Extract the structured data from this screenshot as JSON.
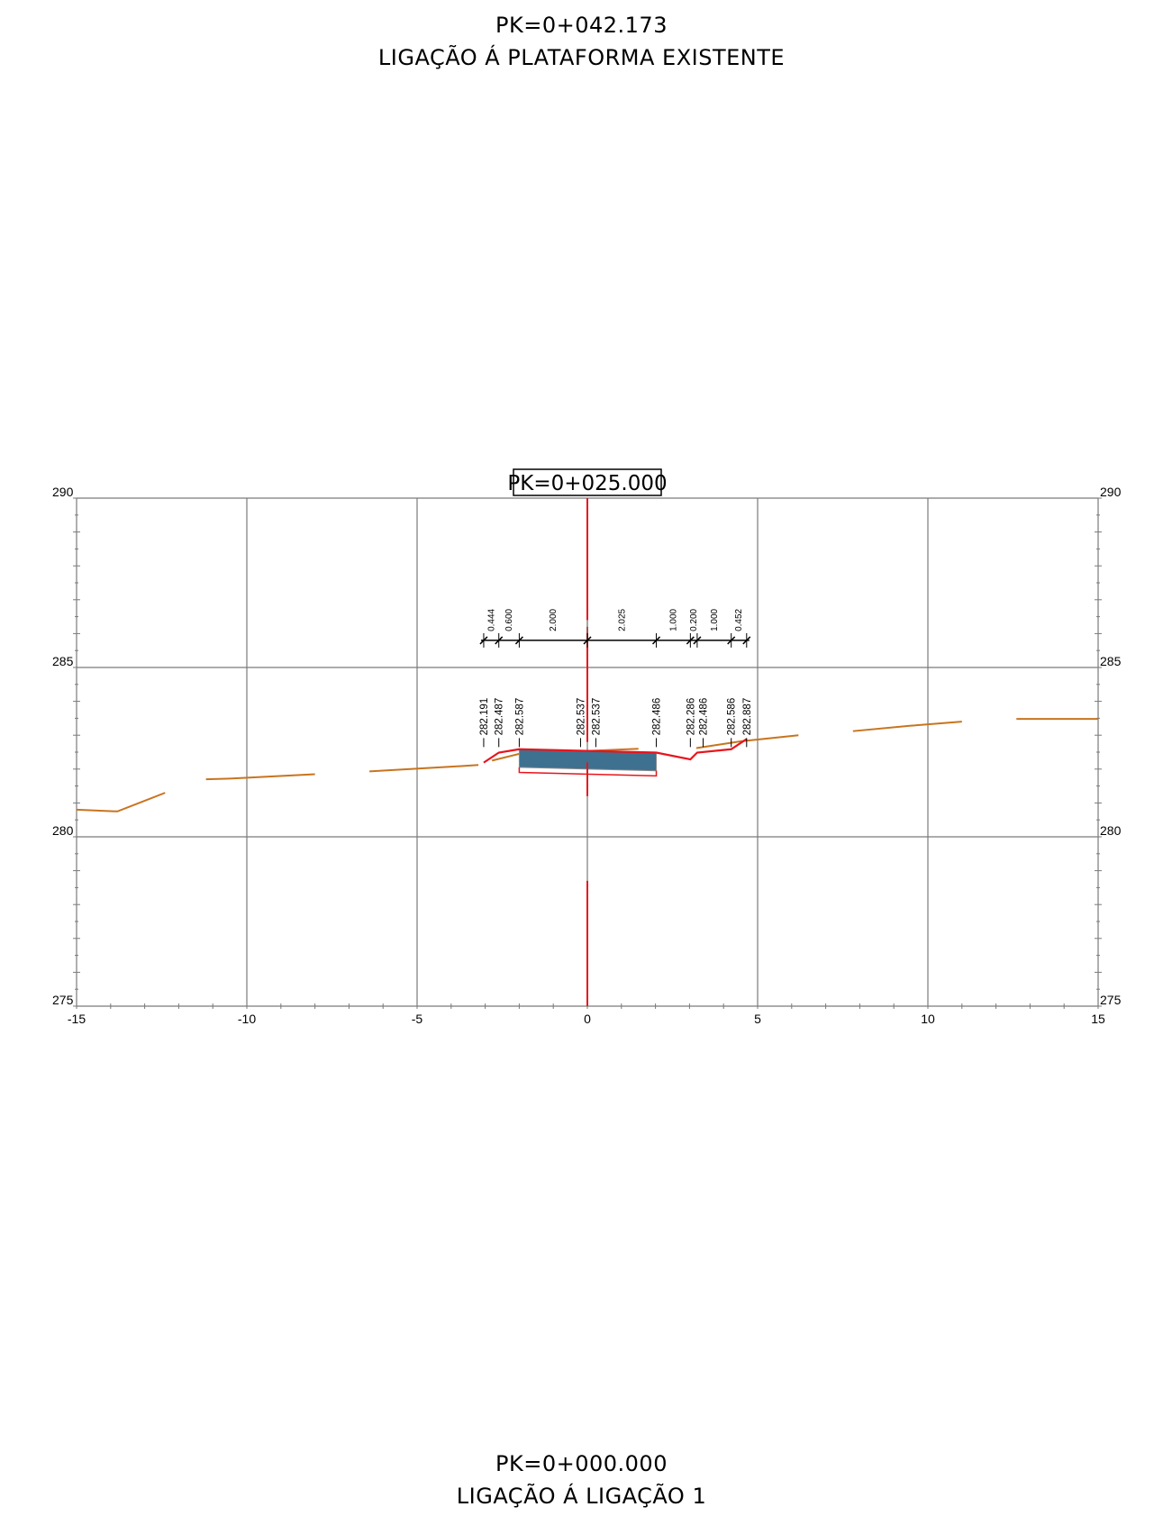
{
  "header": {
    "pk": "PK=0+042.173",
    "connection": "LIGAÇÃO Á PLATAFORMA EXISTENTE"
  },
  "footer": {
    "pk": "PK=0+000.000",
    "connection": "LIGAÇÃO Á LIGAÇÃO 1"
  },
  "section": {
    "pk_label": "PK=0+025.000",
    "x_axis": {
      "range": [
        -15,
        15
      ],
      "ticks": [
        "-15",
        "-10",
        "-5",
        "0",
        "5",
        "10",
        "15"
      ]
    },
    "y_axis": {
      "range": [
        275,
        290
      ],
      "ticks": [
        "275",
        "280",
        "285",
        "290"
      ]
    },
    "colors": {
      "grid": "#7a7a7a",
      "terrain": "#c8741f",
      "design_line": "#e8141c",
      "pavement_fill": "#3e7090",
      "axis_line": "#e8141c"
    },
    "terrain_segments": [
      [
        [
          -15,
          280.8
        ],
        [
          -13.8,
          280.75
        ],
        [
          -12.4,
          281.3
        ]
      ],
      [
        [
          -11.2,
          281.7
        ],
        [
          -10.5,
          281.72
        ],
        [
          -8.0,
          281.85
        ]
      ],
      [
        [
          -6.4,
          281.93
        ],
        [
          -4.0,
          282.07
        ],
        [
          -3.2,
          282.12
        ]
      ],
      [
        [
          -2.8,
          282.25
        ],
        [
          -2.0,
          282.45
        ],
        [
          1.5,
          282.6
        ]
      ],
      [
        [
          3.2,
          282.62
        ],
        [
          4.5,
          282.82
        ],
        [
          6.2,
          283.0
        ]
      ],
      [
        [
          7.8,
          283.12
        ],
        [
          9.5,
          283.28
        ],
        [
          11.0,
          283.4
        ]
      ],
      [
        [
          12.6,
          283.48
        ],
        [
          15.0,
          283.48
        ]
      ]
    ],
    "design_profile": [
      [
        -3.044,
        282.191
      ],
      [
        -2.6,
        282.487
      ],
      [
        -2.0,
        282.587
      ],
      [
        0,
        282.537
      ],
      [
        2.025,
        282.486
      ],
      [
        3.025,
        282.286
      ],
      [
        3.225,
        282.486
      ],
      [
        4.225,
        282.586
      ],
      [
        4.677,
        282.887
      ]
    ],
    "pavement": {
      "fill_top": [
        [
          -2.0,
          282.587
        ],
        [
          0,
          282.537
        ],
        [
          2.025,
          282.486
        ]
      ],
      "fill_bottom_y": 282.0,
      "subbase_bottom_y": 281.85
    },
    "elevation_labels": [
      {
        "x": -3.044,
        "text": "282.191"
      },
      {
        "x": -2.6,
        "text": "282.487"
      },
      {
        "x": -2.0,
        "text": "282.587"
      },
      {
        "x": -0.2,
        "text": "282.537"
      },
      {
        "x": 0.25,
        "text": "282.537"
      },
      {
        "x": 2.025,
        "text": "282.486"
      },
      {
        "x": 3.025,
        "text": "282.286"
      },
      {
        "x": 3.4,
        "text": "282.486"
      },
      {
        "x": 4.225,
        "text": "282.586"
      },
      {
        "x": 4.677,
        "text": "282.887"
      }
    ],
    "dimension_marks": [
      -3.044,
      -2.6,
      -2.0,
      0,
      2.025,
      3.025,
      3.225,
      4.225,
      4.677
    ],
    "dimension_labels": [
      "0.444",
      "0.600",
      "2.000",
      "2.025",
      "1.000",
      "0.200",
      "1.000",
      "0.452"
    ]
  }
}
